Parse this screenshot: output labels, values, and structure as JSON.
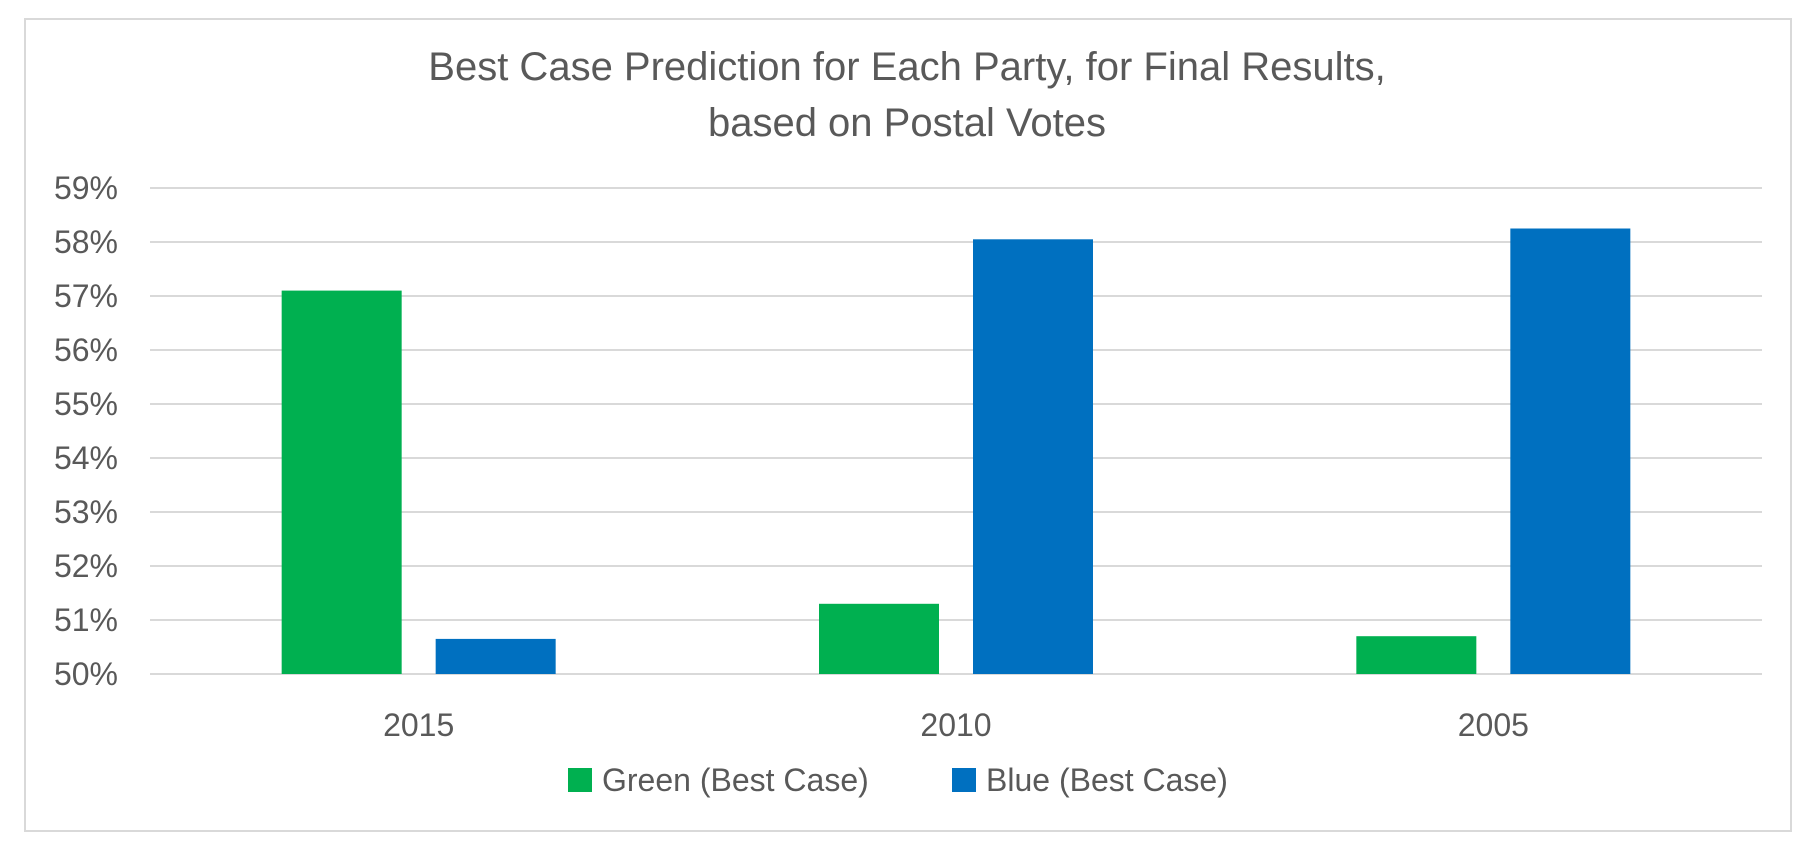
{
  "chart_data": {
    "type": "bar",
    "title": "Best Case Prediction for Each Party, for Final Results,",
    "subtitle": "based on Postal Votes",
    "xlabel": "",
    "ylabel": "",
    "categories": [
      "2015",
      "2010",
      "2005"
    ],
    "series": [
      {
        "name": "Green (Best Case)",
        "values": [
          57.1,
          51.3,
          50.7
        ],
        "color": "#00b050"
      },
      {
        "name": "Blue (Best Case)",
        "values": [
          50.65,
          58.05,
          58.25
        ],
        "color": "#0070c0"
      }
    ],
    "ylim": [
      50,
      59
    ],
    "yticks": [
      "50%",
      "51%",
      "52%",
      "53%",
      "54%",
      "55%",
      "56%",
      "57%",
      "58%",
      "59%"
    ],
    "grid": true,
    "legend_position": "bottom"
  }
}
